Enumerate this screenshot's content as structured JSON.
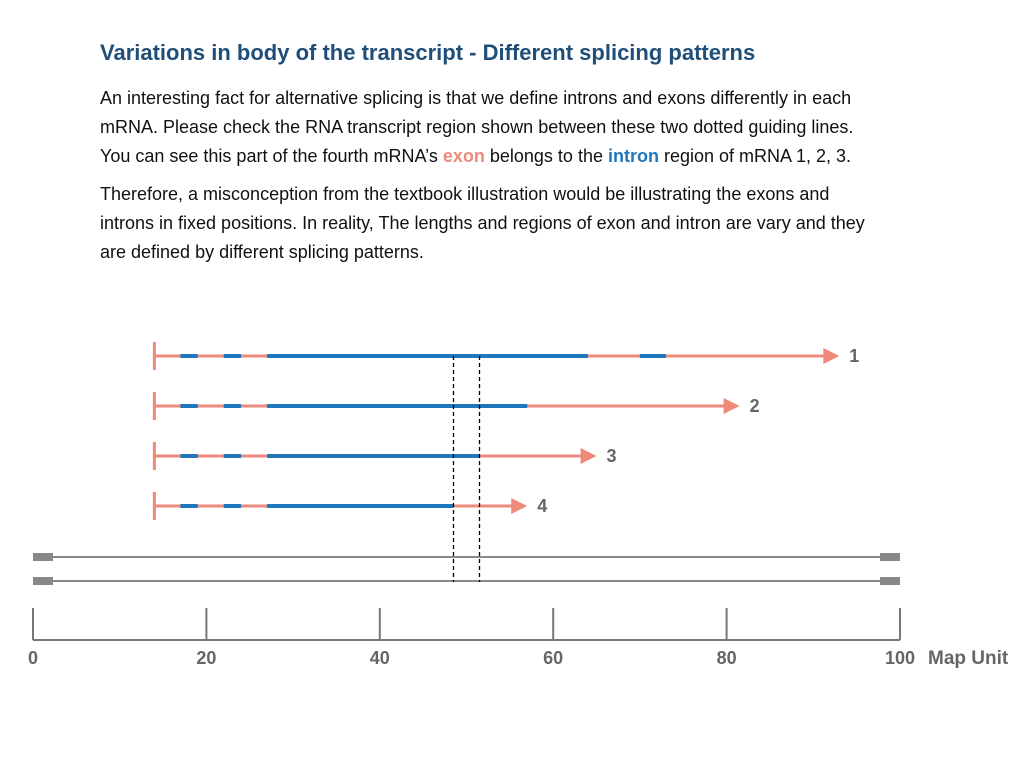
{
  "title": "Variations in body of the transcript - Different splicing patterns",
  "paragraph1": {
    "line1": "An interesting fact for alternative splicing is that we define introns and exons differently in each",
    "line2": "mRNA. Please check the RNA transcript region shown between these two dotted guiding lines.",
    "line3_pre": "You can see this part of the fourth mRNA’s ",
    "exon_word": "exon",
    "line3_mid": " belongs to the ",
    "intron_word": "intron",
    "line3_post": " region of mRNA 1, 2, 3."
  },
  "paragraph2": {
    "line1": "Therefore, a misconception from the textbook illustration would be illustrating the exons and",
    "line2": "introns in fixed positions. In reality, The lengths and regions of exon and intron are vary and they",
    "line3": "are defined by different splicing patterns."
  },
  "colors": {
    "exon": "#ee8a7a",
    "intron": "#1f78bd",
    "gene": "#888888",
    "axis": "#777777",
    "label": "#666666"
  },
  "axis": {
    "label": "Map Unit",
    "min": 0,
    "max": 100,
    "ticks": [
      {
        "value": 0,
        "label": "0"
      },
      {
        "value": 20,
        "label": "20"
      },
      {
        "value": 40,
        "label": "40"
      },
      {
        "value": 60,
        "label": "60"
      },
      {
        "value": 80,
        "label": "80"
      },
      {
        "value": 100,
        "label": "100"
      }
    ]
  },
  "guide_lines": [
    48.5,
    51.5
  ],
  "dna_strand": {
    "start": 0,
    "end": 100
  },
  "transcripts": [
    {
      "label": "1",
      "start": 14,
      "end": 93,
      "introns": [
        [
          17,
          19
        ],
        [
          22,
          24
        ],
        [
          27,
          64
        ],
        [
          70,
          73
        ]
      ]
    },
    {
      "label": "2",
      "start": 14,
      "end": 81.5,
      "introns": [
        [
          17,
          19
        ],
        [
          22,
          24
        ],
        [
          27,
          57
        ]
      ]
    },
    {
      "label": "3",
      "start": 14,
      "end": 65,
      "introns": [
        [
          17,
          19
        ],
        [
          22,
          24
        ],
        [
          27,
          51.5
        ]
      ]
    },
    {
      "label": "4",
      "start": 14,
      "end": 57,
      "introns": [
        [
          17,
          19
        ],
        [
          22,
          24
        ],
        [
          27,
          48.5
        ]
      ]
    }
  ]
}
